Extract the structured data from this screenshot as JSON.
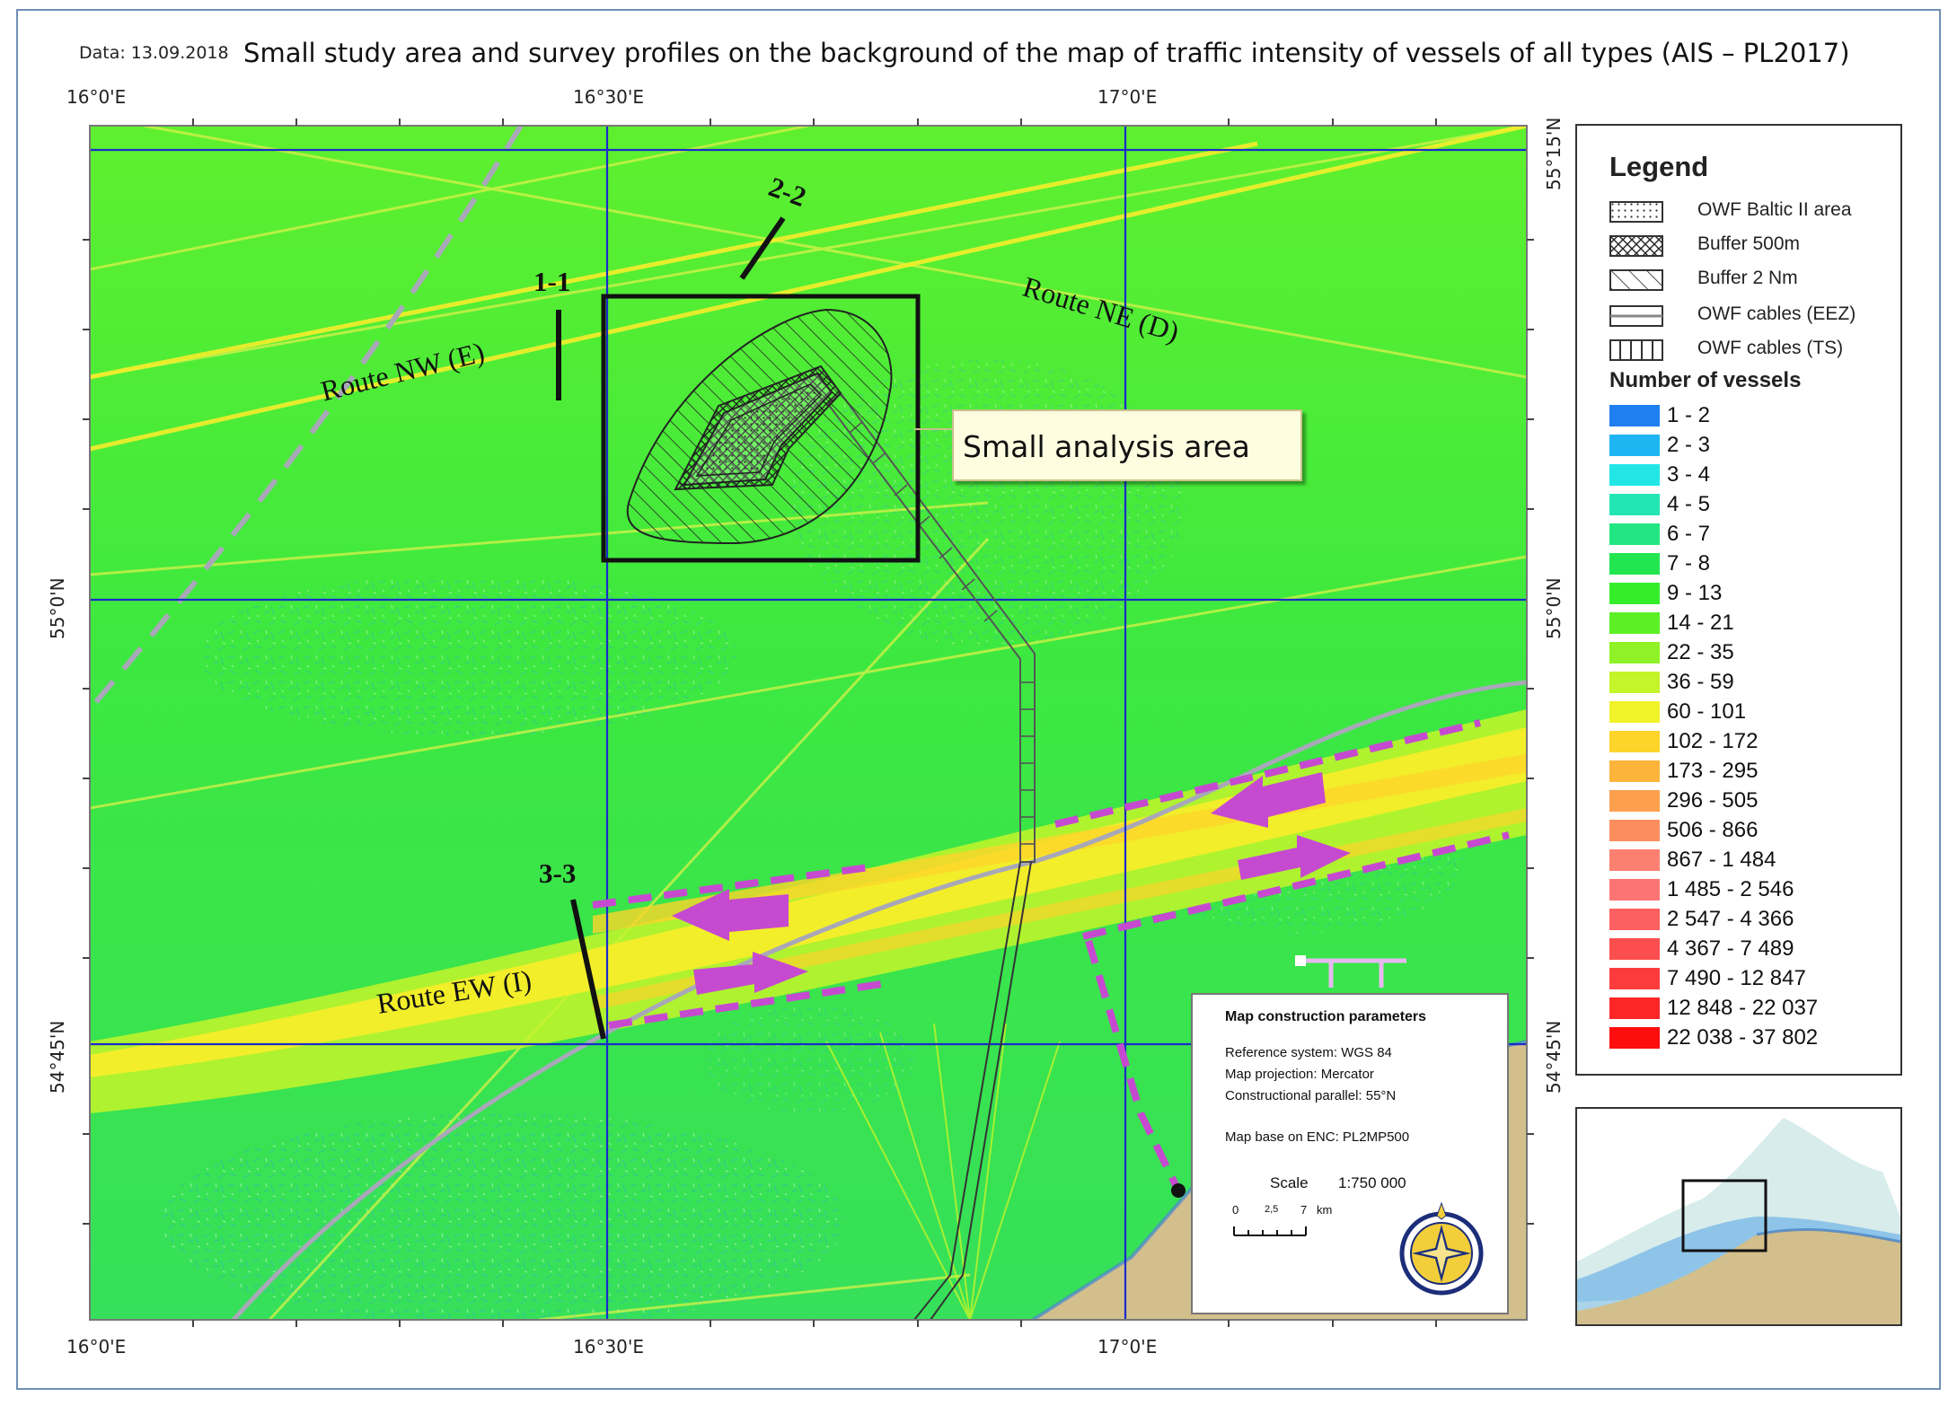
{
  "header": {
    "date": "Data: 13.09.2018",
    "title": "Small study area and survey profiles on the background of the map of traffic intensity of vessels of all types (AIS – PL2017)"
  },
  "axes": {
    "top_ticks": [
      "16°0'E",
      "16°30'E",
      "17°0'E"
    ],
    "bottom_ticks": [
      "16°0'E",
      "16°30'E",
      "17°0'E"
    ],
    "left_ticks": [
      "55°0'N",
      "54°45'N"
    ],
    "right_ticks": [
      "55°15'N",
      "55°0'N",
      "54°45'N"
    ]
  },
  "map_labels": {
    "route_nw": "Route NW (E)",
    "route_ne": "Route NE (D)",
    "route_ew": "Route EW (I)",
    "profile_1": "1-1",
    "profile_2": "2-2",
    "profile_3": "3-3",
    "callout": "Small analysis area"
  },
  "legend": {
    "title": "Legend",
    "symbols": [
      {
        "label": "OWF Baltic II area",
        "pattern": "dots"
      },
      {
        "label": "Buffer 500m",
        "pattern": "crosshatch"
      },
      {
        "label": "Buffer 2 Nm",
        "pattern": "diagonal"
      },
      {
        "label": "OWF cables (EEZ)",
        "pattern": "double-line"
      },
      {
        "label": "OWF cables (TS)",
        "pattern": "ladder"
      }
    ],
    "vessels_title": "Number of vessels",
    "bins": [
      {
        "label": "1 - 2",
        "color": "#1f7ff0"
      },
      {
        "label": "2 - 3",
        "color": "#1eb6f2"
      },
      {
        "label": "3 - 4",
        "color": "#22e6e6"
      },
      {
        "label": "4 - 5",
        "color": "#22e6b4"
      },
      {
        "label": "6 - 7",
        "color": "#22e682"
      },
      {
        "label": "7 - 8",
        "color": "#22e650"
      },
      {
        "label": "9 - 13",
        "color": "#34ee2c"
      },
      {
        "label": "14 - 21",
        "color": "#5cf024"
      },
      {
        "label": "22 - 35",
        "color": "#8ef226"
      },
      {
        "label": "36 - 59",
        "color": "#c4f42a"
      },
      {
        "label": "60 - 101",
        "color": "#f0f22a"
      },
      {
        "label": "102 - 172",
        "color": "#fcd42a"
      },
      {
        "label": "173 - 295",
        "color": "#fcb43a"
      },
      {
        "label": "296 - 505",
        "color": "#fca04e"
      },
      {
        "label": "506 - 866",
        "color": "#fc8e5e"
      },
      {
        "label": "867 - 1 484",
        "color": "#fc8070"
      },
      {
        "label": "1 485 - 2 546",
        "color": "#fc7474"
      },
      {
        "label": "2 547 - 4 366",
        "color": "#fc6060"
      },
      {
        "label": "4 367 - 7 489",
        "color": "#fc4e4e"
      },
      {
        "label": "7 490 - 12 847",
        "color": "#fc3c3c"
      },
      {
        "label": "12 848 - 22 037",
        "color": "#fc2626"
      },
      {
        "label": "22 038 - 37 802",
        "color": "#fc0e0e"
      }
    ]
  },
  "parameters": {
    "title": "Map construction parameters",
    "lines": [
      "Reference system: WGS 84",
      "Map projection: Mercator",
      "Constructional parallel: 55°N",
      "",
      "Map base on ENC: PL2MP500"
    ],
    "scale_label": "Scale",
    "scale_value": "1:750 000",
    "scale_ticks": [
      "0",
      "2,5",
      "7",
      "km"
    ]
  },
  "colors": {
    "sea_base": "#3ee82e",
    "lane": "#f2ee2a",
    "land": "#d2bf8c",
    "grid": "#1a2cc8",
    "arrow": "#c64ad0"
  }
}
